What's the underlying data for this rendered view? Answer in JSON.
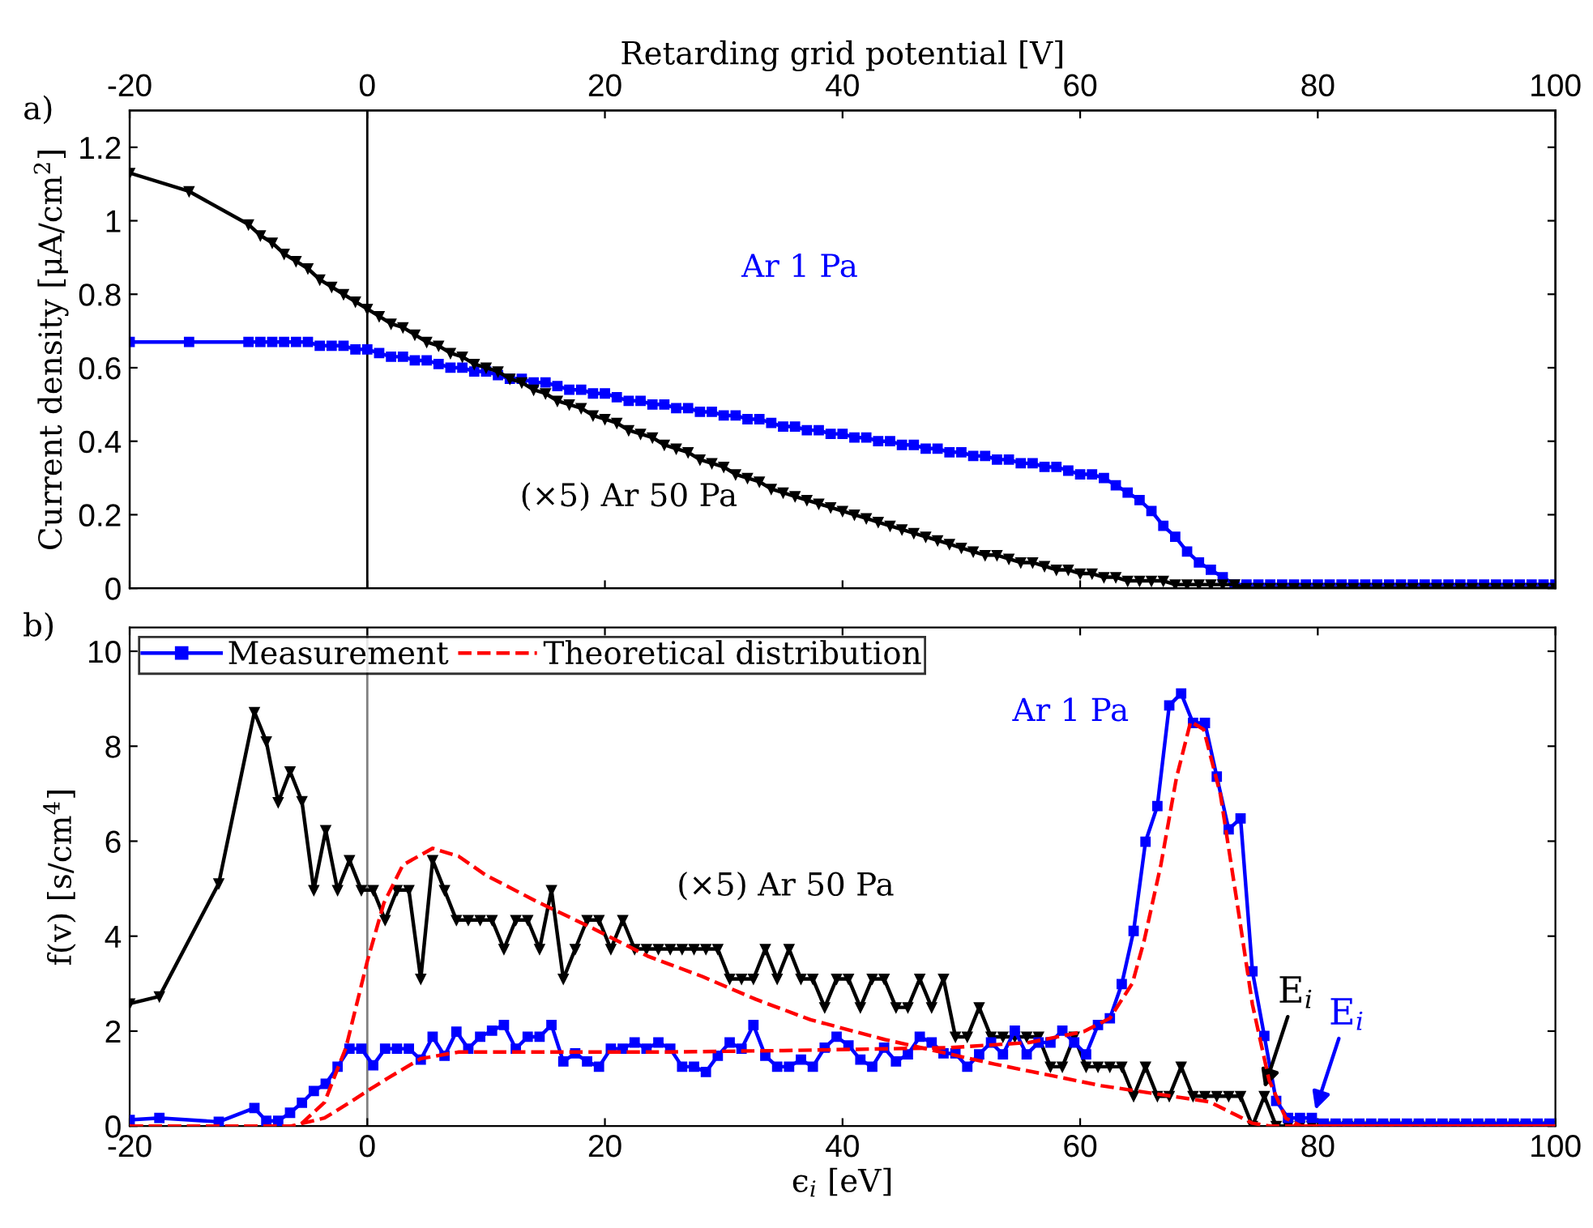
{
  "chart_data": [
    {
      "type": "line",
      "xlim": [
        -20,
        100
      ],
      "xticks": [
        -20,
        0,
        20,
        40,
        60,
        80,
        100
      ],
      "x2lim": [
        -20,
        100
      ],
      "x2ticks": [
        -20,
        0,
        20,
        40,
        60,
        80,
        100
      ],
      "x2label": "Retarding grid potential [V]",
      "ylim": [
        0,
        1.3
      ],
      "yticks": [
        0,
        0.2,
        0.4,
        0.6,
        0.8,
        1,
        1.2
      ],
      "ylabel": "Current density [μA/cm$^{2}$]",
      "tick_labels": "y",
      "legend": false,
      "line_style": "solid",
      "x": [
        -20,
        -15,
        -10,
        -9,
        -8,
        -7,
        -6,
        -5,
        -4,
        -3,
        -2,
        -1,
        0,
        1,
        2,
        3,
        4,
        5,
        6,
        7,
        8,
        9,
        10,
        11,
        12,
        13,
        14,
        15,
        16,
        17,
        18,
        19,
        20,
        21,
        22,
        23,
        24,
        25,
        26,
        27,
        28,
        29,
        30,
        31,
        32,
        33,
        34,
        35,
        36,
        37,
        38,
        39,
        40,
        41,
        42,
        43,
        44,
        45,
        46,
        47,
        48,
        49,
        50,
        51,
        52,
        53,
        54,
        55,
        56,
        57,
        58,
        59,
        60,
        61,
        62,
        63,
        64,
        65,
        66,
        67,
        68,
        69,
        70,
        71,
        72,
        73,
        74,
        75,
        76,
        77,
        78,
        79,
        80,
        81,
        82,
        83,
        84,
        85,
        86,
        87,
        88,
        89,
        90,
        91,
        92,
        93,
        94,
        95,
        96,
        97,
        98,
        99,
        100
      ],
      "series": [
        {
          "name": "Ar 1 Pa",
          "color": "#0000ff",
          "marker": "square",
          "values": [
            0.67,
            0.67,
            0.67,
            0.67,
            0.67,
            0.67,
            0.67,
            0.67,
            0.66,
            0.66,
            0.66,
            0.65,
            0.65,
            0.64,
            0.63,
            0.63,
            0.62,
            0.62,
            0.61,
            0.6,
            0.6,
            0.59,
            0.59,
            0.58,
            0.57,
            0.57,
            0.56,
            0.56,
            0.55,
            0.54,
            0.54,
            0.53,
            0.53,
            0.52,
            0.51,
            0.51,
            0.5,
            0.5,
            0.49,
            0.49,
            0.48,
            0.48,
            0.47,
            0.47,
            0.46,
            0.46,
            0.45,
            0.44,
            0.44,
            0.43,
            0.43,
            0.42,
            0.42,
            0.41,
            0.41,
            0.4,
            0.4,
            0.39,
            0.39,
            0.38,
            0.38,
            0.37,
            0.37,
            0.36,
            0.36,
            0.35,
            0.35,
            0.34,
            0.34,
            0.33,
            0.33,
            0.32,
            0.31,
            0.31,
            0.3,
            0.28,
            0.26,
            0.24,
            0.21,
            0.17,
            0.14,
            0.1,
            0.07,
            0.05,
            0.03,
            0.01,
            0.01,
            0.01,
            0.01,
            0.01,
            0.01,
            0.01,
            0.01,
            0.01,
            0.01,
            0.01,
            0.01,
            0.01,
            0.01,
            0.01,
            0.01,
            0.01,
            0.01,
            0.01,
            0.01,
            0.01,
            0.01,
            0.01,
            0.01,
            0.01,
            0.01,
            0.01,
            0.01
          ]
        },
        {
          "name": "(×5) Ar 50 Pa",
          "color": "#000000",
          "marker": "triangle",
          "values": [
            1.13,
            1.08,
            0.99,
            0.96,
            0.94,
            0.91,
            0.89,
            0.87,
            0.84,
            0.82,
            0.8,
            0.78,
            0.76,
            0.74,
            0.72,
            0.71,
            0.69,
            0.67,
            0.66,
            0.64,
            0.63,
            0.61,
            0.6,
            0.59,
            0.57,
            0.56,
            0.54,
            0.53,
            0.51,
            0.5,
            0.49,
            0.47,
            0.46,
            0.45,
            0.43,
            0.42,
            0.41,
            0.39,
            0.38,
            0.37,
            0.35,
            0.34,
            0.33,
            0.31,
            0.3,
            0.29,
            0.27,
            0.26,
            0.25,
            0.24,
            0.23,
            0.22,
            0.21,
            0.2,
            0.19,
            0.18,
            0.17,
            0.16,
            0.15,
            0.14,
            0.13,
            0.12,
            0.11,
            0.1,
            0.09,
            0.09,
            0.08,
            0.07,
            0.07,
            0.06,
            0.05,
            0.05,
            0.04,
            0.04,
            0.03,
            0.03,
            0.02,
            0.02,
            0.02,
            0.02,
            0.01,
            0.01,
            0.01,
            0.01,
            0.01,
            0.01,
            0,
            0,
            0,
            0,
            0,
            0,
            0,
            0,
            0,
            0,
            0,
            0,
            0,
            0,
            0,
            0,
            0,
            0,
            0,
            0,
            0,
            0,
            0,
            0,
            0,
            0,
            0
          ]
        }
      ],
      "ref_lines": [
        {
          "axis": "x",
          "value": 0,
          "color": "#000000"
        }
      ],
      "annotations": [
        "a)"
      ]
    },
    {
      "type": "line",
      "xlim": [
        -20,
        100
      ],
      "xticks": [
        -20,
        0,
        20,
        40,
        60,
        80,
        100
      ],
      "ylim": [
        0,
        10.5
      ],
      "yticks": [
        0,
        2,
        4,
        6,
        8,
        10
      ],
      "xlabel": "ϵ$_{i}$ [eV]",
      "ylabel": "f(v) [s/cm$^{4}$]",
      "legend": "top left",
      "x": [
        -20,
        -17.5,
        -12.5,
        -9.5,
        -8.5,
        -7.5,
        -6.5,
        -5.5,
        -4.5,
        -3.5,
        -2.5,
        -1.5,
        -0.5,
        0.5,
        1.5,
        2.5,
        3.5,
        4.5,
        5.5,
        6.5,
        7.5,
        8.5,
        9.5,
        10.5,
        11.5,
        12.5,
        13.5,
        14.5,
        15.5,
        16.5,
        17.5,
        18.5,
        19.5,
        20.5,
        21.5,
        22.5,
        23.5,
        24.5,
        25.5,
        26.5,
        27.5,
        28.5,
        29.5,
        30.5,
        31.5,
        32.5,
        33.5,
        34.5,
        35.5,
        36.5,
        37.5,
        38.5,
        39.5,
        40.5,
        41.5,
        42.5,
        43.5,
        44.5,
        45.5,
        46.5,
        47.5,
        48.5,
        49.5,
        50.5,
        51.5,
        52.5,
        53.5,
        54.5,
        55.5,
        56.5,
        57.5,
        58.5,
        59.5,
        60.5,
        61.5,
        62.5,
        63.5,
        64.5,
        65.5,
        66.5,
        67.5,
        68.5,
        69.5,
        70.5,
        71.5,
        72.5,
        73.5,
        74.5,
        75.5,
        76.5,
        77.5,
        78.5,
        79.5,
        80.5,
        81.5,
        82.5,
        83.5,
        84.5,
        85.5,
        86.5,
        87.5,
        88.5,
        89.5,
        90.5,
        91.5,
        92.5,
        93.5,
        94.5,
        95.5,
        96.5,
        97.5,
        98.5,
        99.5
      ],
      "series": [
        {
          "color": "#000000",
          "marker": "triangle",
          "line_style": "solid",
          "values": [
            2.58,
            2.73,
            5.11,
            8.72,
            8.1,
            6.82,
            7.47,
            6.84,
            4.97,
            6.23,
            4.97,
            5.6,
            4.97,
            4.97,
            4.34,
            4.97,
            4.97,
            3.1,
            5.6,
            4.97,
            4.34,
            4.34,
            4.34,
            4.34,
            3.73,
            4.34,
            4.34,
            3.73,
            4.97,
            3.1,
            3.73,
            4.34,
            4.34,
            3.73,
            4.34,
            3.73,
            3.73,
            3.73,
            3.73,
            3.73,
            3.73,
            3.73,
            3.73,
            3.1,
            3.1,
            3.1,
            3.73,
            3.1,
            3.73,
            3.1,
            3.1,
            2.5,
            3.1,
            3.1,
            2.5,
            3.1,
            3.1,
            2.5,
            2.5,
            3.1,
            2.5,
            3.1,
            1.88,
            1.88,
            2.5,
            1.88,
            1.88,
            1.88,
            1.88,
            1.88,
            1.25,
            1.25,
            1.88,
            1.25,
            1.25,
            1.25,
            1.25,
            0.63,
            1.25,
            0.63,
            0.63,
            1.25,
            0.63,
            0.63,
            0.63,
            0.63,
            0.63,
            0,
            0.63,
            0,
            0,
            0,
            0,
            0,
            0,
            0,
            0,
            0,
            0,
            0,
            0,
            0,
            0,
            0,
            0,
            0,
            0,
            0,
            0,
            0,
            0,
            0,
            0
          ]
        },
        {
          "name": "Measurement",
          "color": "#0000ff",
          "marker": "square",
          "line_style": "solid",
          "values": [
            0.13,
            0.17,
            0.09,
            0.38,
            0.11,
            0.11,
            0.28,
            0.49,
            0.74,
            0.89,
            1.25,
            1.63,
            1.63,
            1.28,
            1.63,
            1.63,
            1.63,
            1.4,
            1.88,
            1.48,
            1.99,
            1.63,
            1.88,
            2.01,
            2.13,
            1.63,
            1.88,
            1.88,
            2.13,
            1.36,
            1.53,
            1.36,
            1.25,
            1.63,
            1.63,
            1.76,
            1.63,
            1.76,
            1.63,
            1.25,
            1.25,
            1.14,
            1.48,
            1.76,
            1.63,
            2.13,
            1.48,
            1.25,
            1.25,
            1.4,
            1.25,
            1.65,
            1.88,
            1.7,
            1.4,
            1.25,
            1.65,
            1.36,
            1.51,
            1.88,
            1.76,
            1.53,
            1.53,
            1.25,
            1.51,
            1.76,
            1.51,
            2.01,
            1.51,
            1.76,
            1.76,
            2.01,
            1.76,
            1.51,
            2.13,
            2.27,
            2.99,
            4.11,
            5.99,
            6.74,
            8.86,
            9.11,
            8.49,
            8.49,
            7.36,
            6.25,
            6.48,
            3.26,
            1.9,
            0.53,
            0.17,
            0.17,
            0.17,
            0.05,
            0.05,
            0.05,
            0.05,
            0.05,
            0.05,
            0.05,
            0.05,
            0.05,
            0.05,
            0.05,
            0.05,
            0.05,
            0.05,
            0.05,
            0.05,
            0.05,
            0.05,
            0.05,
            0.05
          ]
        },
        {
          "name": "Theoretical distribution",
          "color": "#ff0000",
          "marker": "none",
          "line_style": "dashed",
          "x": [
            -20,
            -6.4,
            -3.6,
            -1.4,
            0,
            1.8,
            4.5,
            7.7,
            14.5,
            25,
            35,
            48.9,
            55.7,
            60.3,
            62.5,
            64.4,
            65.4,
            66.8,
            68.1,
            69.3,
            70.4,
            71.8,
            73.2,
            74.5,
            75.9,
            77.3,
            78.6,
            100
          ],
          "values": [
            0,
            0,
            0.17,
            0.51,
            0.74,
            1.02,
            1.42,
            1.56,
            1.56,
            1.56,
            1.59,
            1.65,
            1.76,
            1.99,
            2.27,
            3.01,
            3.92,
            5.51,
            7.33,
            8.52,
            8.35,
            6.99,
            4.72,
            2.56,
            0.97,
            0.17,
            0,
            0
          ]
        },
        {
          "color": "#ff0000",
          "marker": "none",
          "line_style": "dashed",
          "x": [
            -20,
            -6,
            -5.5,
            -3.6,
            -2.7,
            -1.8,
            0,
            1.4,
            3,
            5.5,
            7.7,
            10,
            14.5,
            19.1,
            23.6,
            28.2,
            32.7,
            37.3,
            43.6,
            52.7,
            61.8,
            70.9,
            74.5,
            76,
            100
          ],
          "values": [
            0,
            0,
            0.06,
            0.5,
            1.08,
            1.65,
            3.47,
            4.7,
            5.5,
            5.85,
            5.68,
            5.28,
            4.7,
            4.15,
            3.58,
            3.15,
            2.67,
            2.24,
            1.82,
            1.31,
            0.85,
            0.51,
            0.06,
            0,
            0
          ]
        }
      ],
      "ref_lines": [
        {
          "axis": "x",
          "value": 0,
          "color": "#808080"
        }
      ],
      "annotations": [
        "b)",
        "Ar 1 Pa",
        "(×5) Ar 50 Pa",
        {
          "text": "E$_{i}$",
          "x": 75.5,
          "y": 0.8
        },
        {
          "text": "E$_{i}$",
          "x": 79.8,
          "y": 0.34
        }
      ]
    }
  ]
}
